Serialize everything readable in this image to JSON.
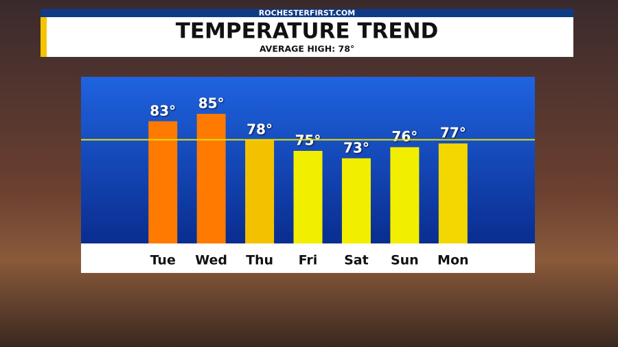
{
  "source": "ROCHESTERFIRST.COM",
  "chart_data": {
    "type": "bar",
    "title": "TEMPERATURE TREND",
    "average_high": {
      "value": 78,
      "label": "AVERAGE HIGH: 78°",
      "color": "#e8e000"
    },
    "categories": [
      "Tue",
      "Wed",
      "Thu",
      "Fri",
      "Sat",
      "Sun",
      "Mon"
    ],
    "values": [
      83,
      85,
      78,
      75,
      73,
      76,
      77
    ],
    "value_labels": [
      "83°",
      "85°",
      "78°",
      "75°",
      "73°",
      "76°",
      "77°"
    ],
    "colors": [
      "#ff7a00",
      "#ff7a00",
      "#f2c200",
      "#f2ee00",
      "#f2ee00",
      "#f2ee00",
      "#f2d800"
    ],
    "ylim": [
      50,
      95
    ]
  }
}
